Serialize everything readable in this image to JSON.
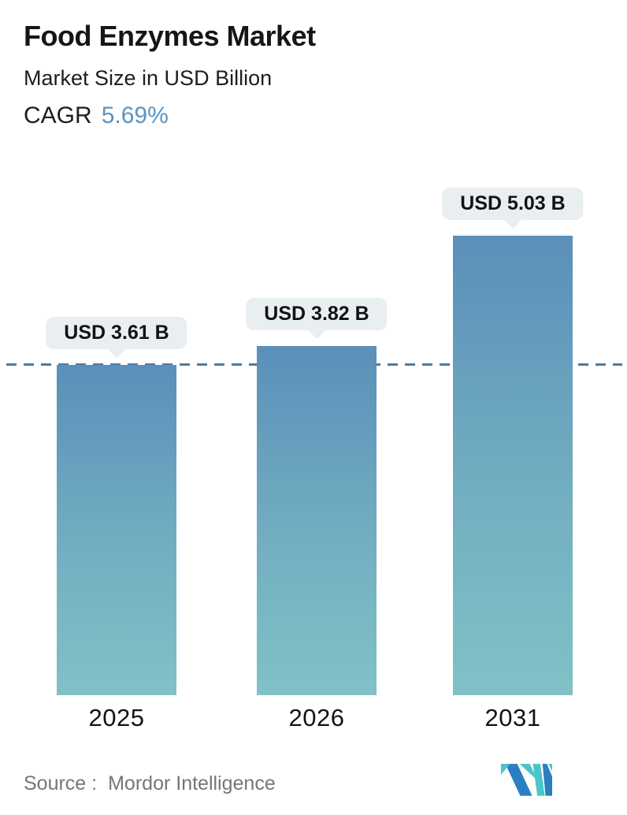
{
  "header": {
    "title": "Food Enzymes Market",
    "subtitle": "Market Size in USD Billion",
    "cagr_label": "CAGR",
    "cagr_value": "5.69%"
  },
  "chart_data": {
    "type": "bar",
    "title": "Food Enzymes Market",
    "subtitle": "Market Size in USD Billion",
    "ylabel": "Market Size (USD Billion)",
    "xlabel": "",
    "categories": [
      "2025",
      "2026",
      "2031"
    ],
    "values": [
      3.61,
      3.82,
      5.03
    ],
    "value_labels": [
      "USD 3.61 B",
      "USD 3.82 B",
      "USD 5.03 B"
    ],
    "cagr_percent": 5.69,
    "baseline_value": 3.61,
    "baseline_style": "dashed",
    "ylim": [
      0,
      5.5
    ],
    "grid": false,
    "legend": false,
    "colors": {
      "bar_top": "#5b8fb9",
      "bar_mid": "#72aec1",
      "bar_bottom": "#81c1c6",
      "badge_bg": "#e9eef0",
      "dash_line": "#4c7ca3",
      "accent_blue": "#5b93c1",
      "text_dark": "#141619",
      "source_gray": "#767676"
    }
  },
  "footer": {
    "source_label": "Source :",
    "source_value": "Mordor Intelligence",
    "logo_name": "mordor-intelligence-logo",
    "logo_colors": {
      "teal": "#4cc5c9",
      "blue": "#2b7ec1"
    }
  }
}
